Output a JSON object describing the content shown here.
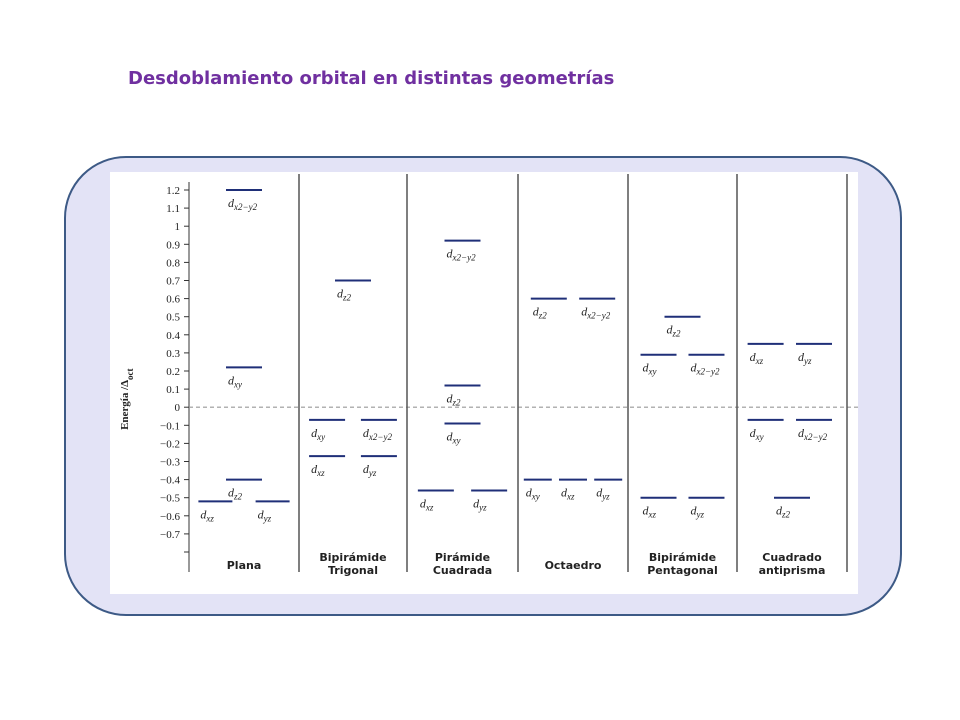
{
  "title": "Desdoblamiento orbital en distintas geometrías",
  "y_axis": {
    "label_main": "Energía /Δ",
    "label_sub": "oct",
    "ticks": [
      "1.2",
      "1.1",
      "1",
      "0.9",
      "0.8",
      "0.7",
      "0.6",
      "0.5",
      "0.4",
      "0.3",
      "0.2",
      "0.1",
      "0",
      "−0.1",
      "−0.2",
      "−0.3",
      "−0.4",
      "−0.5",
      "−0.6",
      "−0.7"
    ],
    "range": [
      -0.8,
      1.25
    ],
    "zero_line": "dashed"
  },
  "colors": {
    "level": "#1f2f78",
    "title": "#7030a0",
    "frame_border": "#3d5a86",
    "frame_fill": "#e3e3f6"
  },
  "geometries": [
    {
      "name": "Plana",
      "levels": [
        {
          "label": "d",
          "sub": "x2−y2",
          "energy": 1.2,
          "pos": 0.5
        },
        {
          "label": "d",
          "sub": "xy",
          "energy": 0.22,
          "pos": 0.5
        },
        {
          "label": "d",
          "sub": "z2",
          "energy": -0.4,
          "pos": 0.5
        },
        {
          "label": "d",
          "sub": "xz",
          "energy": -0.52,
          "pos": 0.24
        },
        {
          "label": "d",
          "sub": "yz",
          "energy": -0.52,
          "pos": 0.76
        }
      ]
    },
    {
      "name": "Bipirámide\nTrigonal",
      "levels": [
        {
          "label": "d",
          "sub": "z2",
          "energy": 0.7,
          "pos": 0.5
        },
        {
          "label": "d",
          "sub": "xy",
          "energy": -0.07,
          "pos": 0.26
        },
        {
          "label": "d",
          "sub": "x2−y2",
          "energy": -0.07,
          "pos": 0.74
        },
        {
          "label": "d",
          "sub": "xz",
          "energy": -0.27,
          "pos": 0.26
        },
        {
          "label": "d",
          "sub": "yz",
          "energy": -0.27,
          "pos": 0.74
        }
      ]
    },
    {
      "name": "Pirámide\nCuadrada",
      "levels": [
        {
          "label": "d",
          "sub": "x2−y2",
          "energy": 0.92,
          "pos": 0.5
        },
        {
          "label": "d",
          "sub": "z2",
          "energy": 0.12,
          "pos": 0.5
        },
        {
          "label": "d",
          "sub": "xy",
          "energy": -0.09,
          "pos": 0.5
        },
        {
          "label": "d",
          "sub": "xz",
          "energy": -0.46,
          "pos": 0.26
        },
        {
          "label": "d",
          "sub": "yz",
          "energy": -0.46,
          "pos": 0.74
        }
      ]
    },
    {
      "name": "Octaedro",
      "levels": [
        {
          "label": "d",
          "sub": "z2",
          "energy": 0.6,
          "pos": 0.28
        },
        {
          "label": "d",
          "sub": "x2−y2",
          "energy": 0.6,
          "pos": 0.72
        },
        {
          "label": "d",
          "sub": "xy",
          "energy": -0.4,
          "pos": 0.18
        },
        {
          "label": "d",
          "sub": "xz",
          "energy": -0.4,
          "pos": 0.5
        },
        {
          "label": "d",
          "sub": "yz",
          "energy": -0.4,
          "pos": 0.82
        }
      ]
    },
    {
      "name": "Bipirámide\nPentagonal",
      "levels": [
        {
          "label": "d",
          "sub": "z2",
          "energy": 0.5,
          "pos": 0.5
        },
        {
          "label": "d",
          "sub": "xy",
          "energy": 0.29,
          "pos": 0.28
        },
        {
          "label": "d",
          "sub": "x2−y2",
          "energy": 0.29,
          "pos": 0.72
        },
        {
          "label": "d",
          "sub": "xz",
          "energy": -0.5,
          "pos": 0.28
        },
        {
          "label": "d",
          "sub": "yz",
          "energy": -0.5,
          "pos": 0.72
        }
      ]
    },
    {
      "name": "Cuadrado\nantiprisma",
      "levels": [
        {
          "label": "d",
          "sub": "xz",
          "energy": 0.35,
          "pos": 0.26
        },
        {
          "label": "d",
          "sub": "yz",
          "energy": 0.35,
          "pos": 0.7
        },
        {
          "label": "d",
          "sub": "xy",
          "energy": -0.07,
          "pos": 0.26
        },
        {
          "label": "d",
          "sub": "x2−y2",
          "energy": -0.07,
          "pos": 0.7
        },
        {
          "label": "d",
          "sub": "z2",
          "energy": -0.5,
          "pos": 0.5
        }
      ]
    }
  ]
}
